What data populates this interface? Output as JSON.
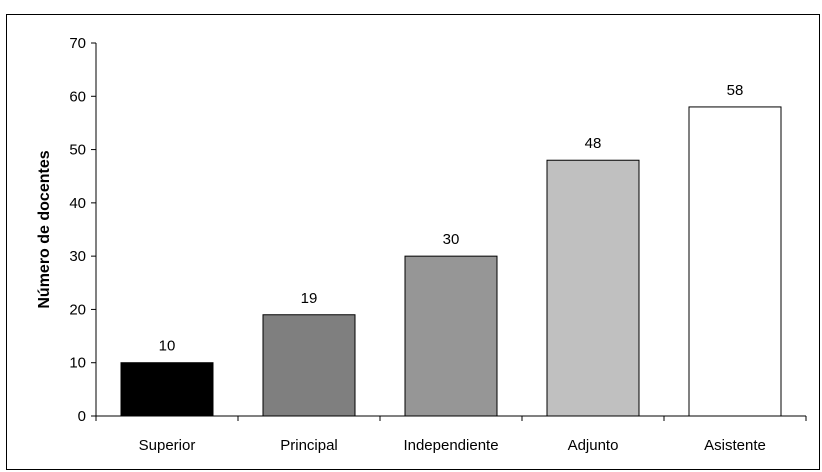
{
  "chart_data": {
    "type": "bar",
    "title": "",
    "xlabel": "",
    "ylabel": "Número de docentes",
    "categories": [
      "Superior",
      "Principal",
      "Independiente",
      "Adjunto",
      "Asistente"
    ],
    "values": [
      10,
      19,
      30,
      48,
      58
    ],
    "ylim": [
      0,
      70
    ],
    "yticks": [
      0,
      10,
      20,
      30,
      40,
      50,
      60,
      70
    ],
    "grid": false,
    "legend": "none",
    "bar_colors": [
      "#000000",
      "#7f7f7f",
      "#969696",
      "#c0c0c0",
      "#ffffff"
    ],
    "bar_edge_color": "#000000",
    "data_labels": [
      "10",
      "19",
      "30",
      "48",
      "58"
    ]
  }
}
